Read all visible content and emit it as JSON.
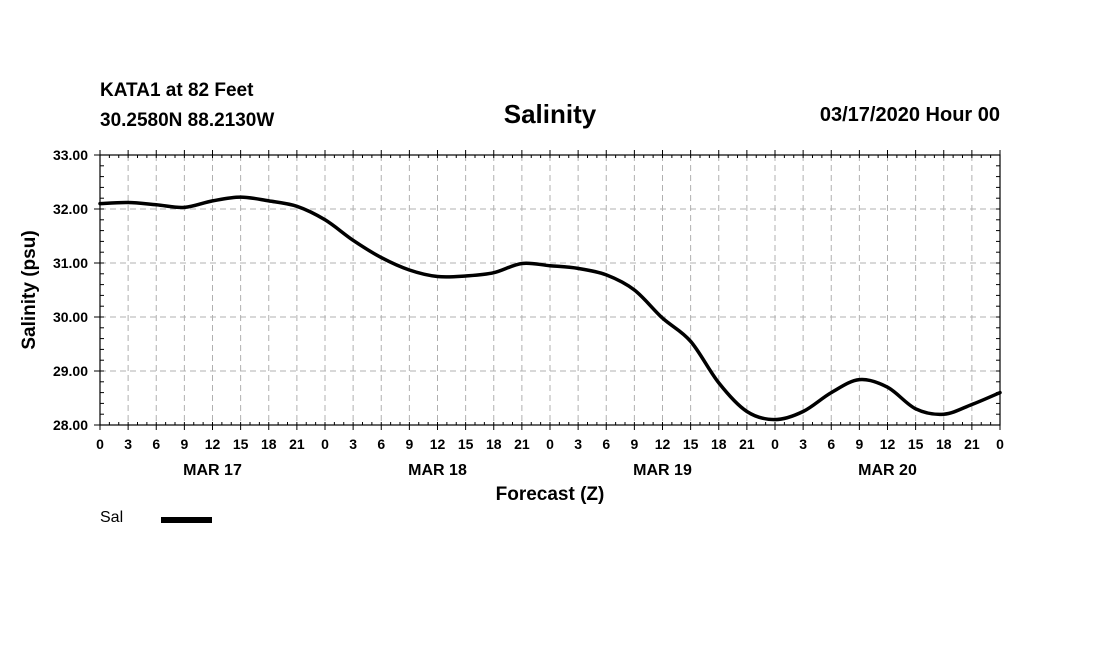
{
  "header": {
    "station": "KATA1 at 82 Feet",
    "location": "30.2580N 88.2130W",
    "datetime": "03/17/2020 Hour 00"
  },
  "legend": {
    "label": "Sal",
    "color": "#000000"
  },
  "chart_data": {
    "type": "line",
    "title": "Salinity",
    "xlabel": "Forecast (Z)",
    "ylabel": "Salinity (psu)",
    "ylim": [
      28,
      33
    ],
    "yticks": [
      "28.00",
      "29.00",
      "30.00",
      "31.00",
      "32.00",
      "33.00"
    ],
    "xlim": [
      0,
      96
    ],
    "xticks": [
      "0",
      "3",
      "6",
      "9",
      "12",
      "15",
      "18",
      "21",
      "0",
      "3",
      "6",
      "9",
      "12",
      "15",
      "18",
      "21",
      "0",
      "3",
      "6",
      "9",
      "12",
      "15",
      "18",
      "21",
      "0",
      "3",
      "6",
      "9",
      "12",
      "15",
      "18",
      "21",
      "0"
    ],
    "day_labels": [
      {
        "label": "MAR 17",
        "hour": 12
      },
      {
        "label": "MAR 18",
        "hour": 36
      },
      {
        "label": "MAR 19",
        "hour": 60
      },
      {
        "label": "MAR 20",
        "hour": 84
      }
    ],
    "grid": true,
    "series": [
      {
        "name": "Sal",
        "x": [
          0,
          3,
          6,
          9,
          12,
          15,
          18,
          21,
          24,
          27,
          30,
          33,
          36,
          39,
          42,
          45,
          48,
          51,
          54,
          57,
          60,
          63,
          66,
          69,
          72,
          75,
          78,
          81,
          84,
          87,
          90,
          93,
          96
        ],
        "values": [
          32.1,
          32.12,
          32.08,
          32.03,
          32.15,
          32.22,
          32.15,
          32.05,
          31.8,
          31.42,
          31.1,
          30.87,
          30.75,
          30.76,
          30.82,
          30.99,
          30.95,
          30.9,
          30.78,
          30.5,
          29.98,
          29.55,
          28.78,
          28.25,
          28.1,
          28.25,
          28.6,
          28.84,
          28.7,
          28.3,
          28.2,
          28.38,
          28.6
        ]
      }
    ]
  }
}
